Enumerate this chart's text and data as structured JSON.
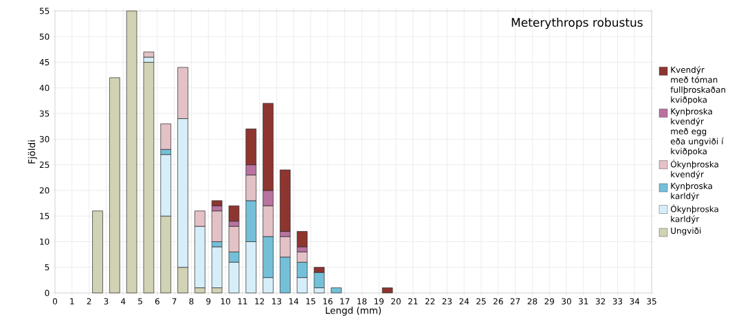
{
  "chart_data": {
    "type": "bar",
    "stacked": true,
    "title": "Meterythrops robustus",
    "xlabel": "Lengd (mm)",
    "ylabel": "Fjöldi",
    "x": [
      2.5,
      3.5,
      4.5,
      5.5,
      6.5,
      7.5,
      8.5,
      9.5,
      10.5,
      11.5,
      12.5,
      13.5,
      14.5,
      15.5,
      16.5,
      17.5,
      18.5,
      19.5
    ],
    "series": [
      {
        "name": "Ungviði",
        "color": "#d2d2b4",
        "values": [
          16,
          42,
          55,
          45,
          15,
          5,
          1,
          1,
          null,
          null,
          null,
          null,
          null,
          null,
          null,
          null,
          null,
          null
        ]
      },
      {
        "name": "Ókynþroska karldýr",
        "color": "#d6eef9",
        "values": [
          null,
          null,
          null,
          1,
          12,
          29,
          12,
          8,
          6,
          10,
          3,
          null,
          3,
          1,
          null,
          null,
          null,
          null
        ]
      },
      {
        "name": "Kynþroska karldýr",
        "color": "#74c0d8",
        "values": [
          null,
          null,
          null,
          null,
          1,
          null,
          null,
          1,
          2,
          8,
          8,
          7,
          3,
          3,
          1,
          null,
          null,
          null
        ]
      },
      {
        "name": "Ókynþroska kvendýr",
        "color": "#e3c1c6",
        "values": [
          null,
          null,
          null,
          1,
          5,
          10,
          3,
          6,
          5,
          5,
          6,
          4,
          2,
          null,
          null,
          null,
          null,
          null
        ]
      },
      {
        "name": "Kynþroska kvendýr með egg eða ungviði í kviðpoka",
        "color": "#b8739f",
        "values": [
          null,
          null,
          null,
          null,
          null,
          null,
          null,
          1,
          1,
          2,
          3,
          1,
          1,
          null,
          null,
          null,
          null,
          null
        ]
      },
      {
        "name": "Kvendýr með tóman fullþroskaðan kviðpoka",
        "color": "#8e3530",
        "values": [
          null,
          null,
          null,
          null,
          null,
          null,
          null,
          1,
          3,
          7,
          17,
          12,
          3,
          1,
          null,
          null,
          null,
          1
        ]
      }
    ],
    "xlim": [
      0,
      35
    ],
    "xticks": [
      0,
      1,
      2,
      3,
      4,
      5,
      6,
      7,
      8,
      9,
      10,
      11,
      12,
      13,
      14,
      15,
      16,
      17,
      18,
      19,
      20,
      21,
      22,
      23,
      24,
      25,
      26,
      27,
      28,
      29,
      30,
      31,
      32,
      33,
      34,
      35
    ],
    "ylim": [
      0,
      55
    ],
    "yticks": [
      0,
      5,
      10,
      15,
      20,
      25,
      30,
      35,
      40,
      45,
      50,
      55
    ],
    "grid": true,
    "legend": "right"
  }
}
